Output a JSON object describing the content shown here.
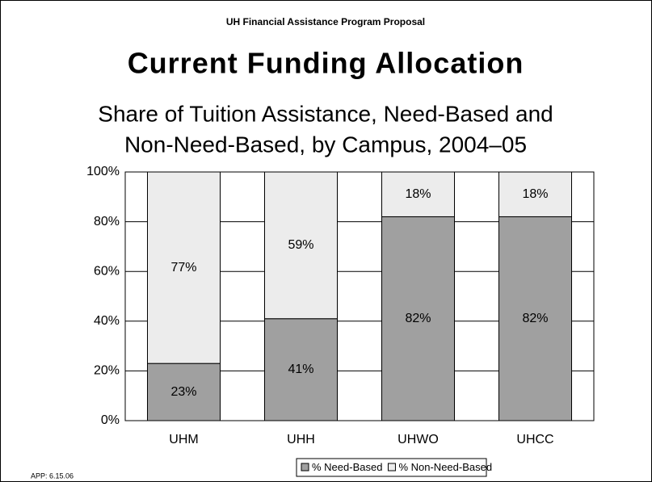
{
  "header": "UH Financial Assistance Program Proposal",
  "footer": "APP: 6.15.06",
  "chart_data": {
    "type": "stacked_bar",
    "title": "Current Funding Allocation",
    "subtitle": [
      "Share of Tuition Assistance, Need-Based and",
      "Non-Need-Based, by Campus, 2004–05"
    ],
    "categories": [
      "UHM",
      "UHH",
      "UHWO",
      "UHCC"
    ],
    "series": [
      {
        "name": "% Need-Based",
        "color": "#a0a0a0",
        "values": [
          23,
          41,
          82,
          82
        ],
        "value_labels": [
          "23%",
          "41%",
          "82%",
          "82%"
        ]
      },
      {
        "name": "% Non-Need-Based",
        "color": "#ececec",
        "values": [
          77,
          59,
          18,
          18
        ],
        "value_labels": [
          "77%",
          "59%",
          "18%",
          "18%"
        ]
      }
    ],
    "ylim": [
      0,
      100
    ],
    "yticks": [
      {
        "value": 0,
        "label": "0%"
      },
      {
        "value": 20,
        "label": "20%"
      },
      {
        "value": 40,
        "label": "40%"
      },
      {
        "value": 60,
        "label": "60%"
      },
      {
        "value": 80,
        "label": "80%"
      },
      {
        "value": 100,
        "label": "100%"
      }
    ],
    "grid": true,
    "legend": "bottom"
  }
}
